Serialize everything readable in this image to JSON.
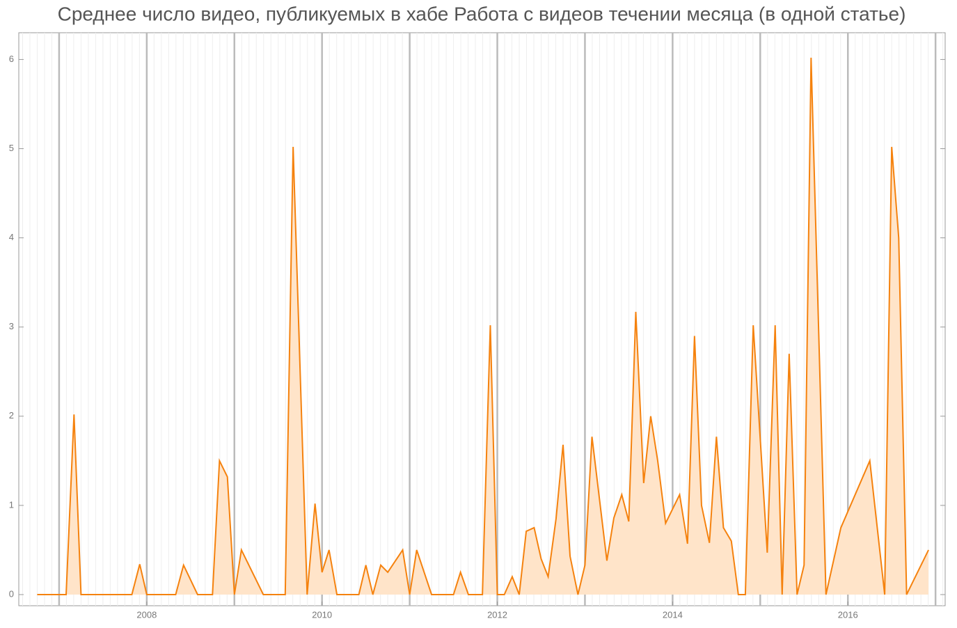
{
  "chart_data": {
    "type": "area",
    "title": "Среднее число видео, публикуемых в хабе Работа с видеов течении месяца (в одной статье)",
    "x": [
      2006.75,
      2007.08,
      2007.17,
      2007.25,
      2007.83,
      2007.92,
      2008.0,
      2008.33,
      2008.42,
      2008.58,
      2008.75,
      2008.83,
      2008.92,
      2009.0,
      2009.08,
      2009.33,
      2009.58,
      2009.67,
      2009.83,
      2009.92,
      2010.0,
      2010.08,
      2010.17,
      2010.42,
      2010.5,
      2010.58,
      2010.67,
      2010.75,
      2010.92,
      2011.0,
      2011.08,
      2011.25,
      2011.5,
      2011.58,
      2011.67,
      2011.83,
      2011.92,
      2012.0,
      2012.08,
      2012.17,
      2012.25,
      2012.33,
      2012.42,
      2012.5,
      2012.58,
      2012.67,
      2012.75,
      2012.83,
      2012.92,
      2013.0,
      2013.08,
      2013.25,
      2013.33,
      2013.42,
      2013.5,
      2013.58,
      2013.67,
      2013.75,
      2013.83,
      2013.92,
      2014.08,
      2014.17,
      2014.25,
      2014.33,
      2014.42,
      2014.5,
      2014.58,
      2014.67,
      2014.75,
      2014.83,
      2014.92,
      2015.08,
      2015.17,
      2015.25,
      2015.33,
      2015.42,
      2015.5,
      2015.58,
      2015.75,
      2015.92,
      2016.25,
      2016.42,
      2016.5,
      2016.58,
      2016.67,
      2016.92
    ],
    "series": [
      {
        "color": "#f5820e",
        "fill": "#ffe4c9",
        "values": [
          0,
          0,
          2.02,
          0,
          0,
          0.34,
          0,
          0,
          0.33,
          0,
          0,
          1.5,
          1.32,
          0,
          0.5,
          0,
          0,
          5.02,
          0,
          1.02,
          0.25,
          0.5,
          0,
          0,
          0.33,
          0,
          0.33,
          0.25,
          0.5,
          0,
          0.5,
          0,
          0,
          0.25,
          0,
          0,
          3.02,
          0,
          0,
          0.2,
          0,
          0.71,
          0.75,
          0.4,
          0.2,
          0.85,
          1.68,
          0.43,
          0,
          0.33,
          1.77,
          0.38,
          0.86,
          1.12,
          0.82,
          3.17,
          1.25,
          2.0,
          1.5,
          0.8,
          1.12,
          0.57,
          2.9,
          1.0,
          0.58,
          1.77,
          0.75,
          0.6,
          0,
          0,
          3.02,
          0.47,
          3.02,
          0,
          2.7,
          0,
          0.33,
          6.02,
          0,
          0.75,
          1.5,
          0,
          5.02,
          4.0,
          0,
          0.5
        ]
      }
    ],
    "xlim": [
      2006.54,
      2017.11
    ],
    "ylim": [
      -0.125,
      6.3
    ],
    "xticks": [
      2008,
      2010,
      2012,
      2014,
      2016
    ],
    "xgrid": [
      2007,
      2008,
      2009,
      2010,
      2011,
      2012,
      2013,
      2014,
      2015,
      2016,
      2017
    ],
    "yticks": [
      0,
      1,
      2,
      3,
      4,
      5,
      6
    ]
  }
}
